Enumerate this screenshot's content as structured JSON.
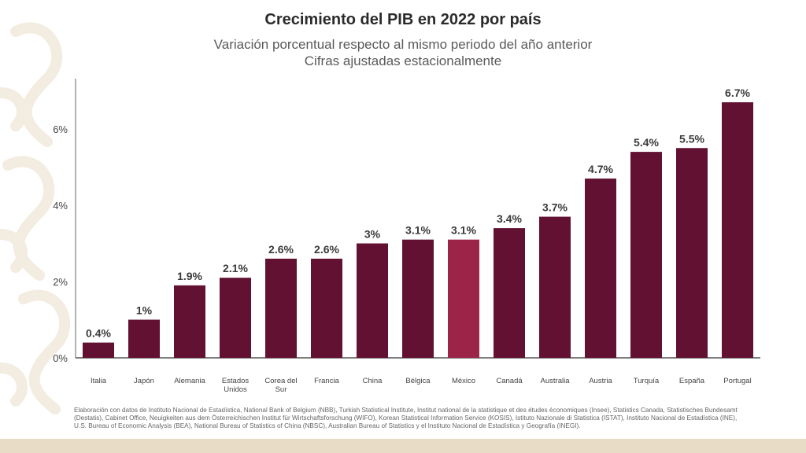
{
  "title": "Crecimiento del PIB en 2022 por país",
  "subtitle_line1": "Variación porcentual respecto al mismo periodo del año anterior",
  "subtitle_line2": "Cifras ajustadas estacionalmente",
  "source_note": "Elaboración con datos de Instituto Nacional de Estadística, National Bank of Belgium (NBB), Turkish Statistical Institute, Institut national de la statistique et des études économiques (Insee), Statistics Canada, Statistisches Bundesamt (Destatis), Cabinet Office, Neuigkeiten aus dem Österreichischen Institut für Wirtschaftsforschung (WIFO), Korean Statistical Information Service (KOSIS), Istituto Nazionale di Statistica (ISTAT), Instituto Nacional de Estadística (INE), U.S. Bureau of Economic Analysis (BEA), National Bureau of Statistics of China (NBSC), Australian Bureau of Statistics y el Instituto Nacional de Estadística y Geografía (INEGI).",
  "colors": {
    "bar": "#621132",
    "highlight": "#9d2449",
    "background_ornament": "#f3ece0",
    "bottom_bar": "#e8dcc6"
  },
  "chart_data": {
    "type": "bar",
    "title": "Crecimiento del PIB en 2022 por país",
    "subtitle": "Variación porcentual respecto al mismo periodo del año anterior / Cifras ajustadas estacionalmente",
    "categories": [
      "Italia",
      "Japón",
      "Alemania",
      "Estados Unidos",
      "Corea del Sur",
      "Francia",
      "China",
      "Bélgica",
      "México",
      "Canadá",
      "Australia",
      "Austria",
      "Turquía",
      "España",
      "Portugal"
    ],
    "values": [
      0.4,
      1,
      1.9,
      2.1,
      2.6,
      2.6,
      3,
      3.1,
      3.1,
      3.4,
      3.7,
      4.7,
      5.4,
      5.5,
      6.7
    ],
    "data_labels": [
      "0.4%",
      "1%",
      "1.9%",
      "2.1%",
      "2.6%",
      "2.6%",
      "3%",
      "3.1%",
      "3.1%",
      "3.4%",
      "3.7%",
      "4.7%",
      "5.4%",
      "5.5%",
      "6.7%"
    ],
    "highlight_category": "México",
    "yticks": [
      0,
      2,
      4,
      6
    ],
    "ytick_labels": [
      "0%",
      "2%",
      "4%",
      "6%"
    ],
    "ylim": [
      0,
      7.5
    ],
    "xlabel": "",
    "ylabel": "",
    "grid": false,
    "legend": "none"
  }
}
